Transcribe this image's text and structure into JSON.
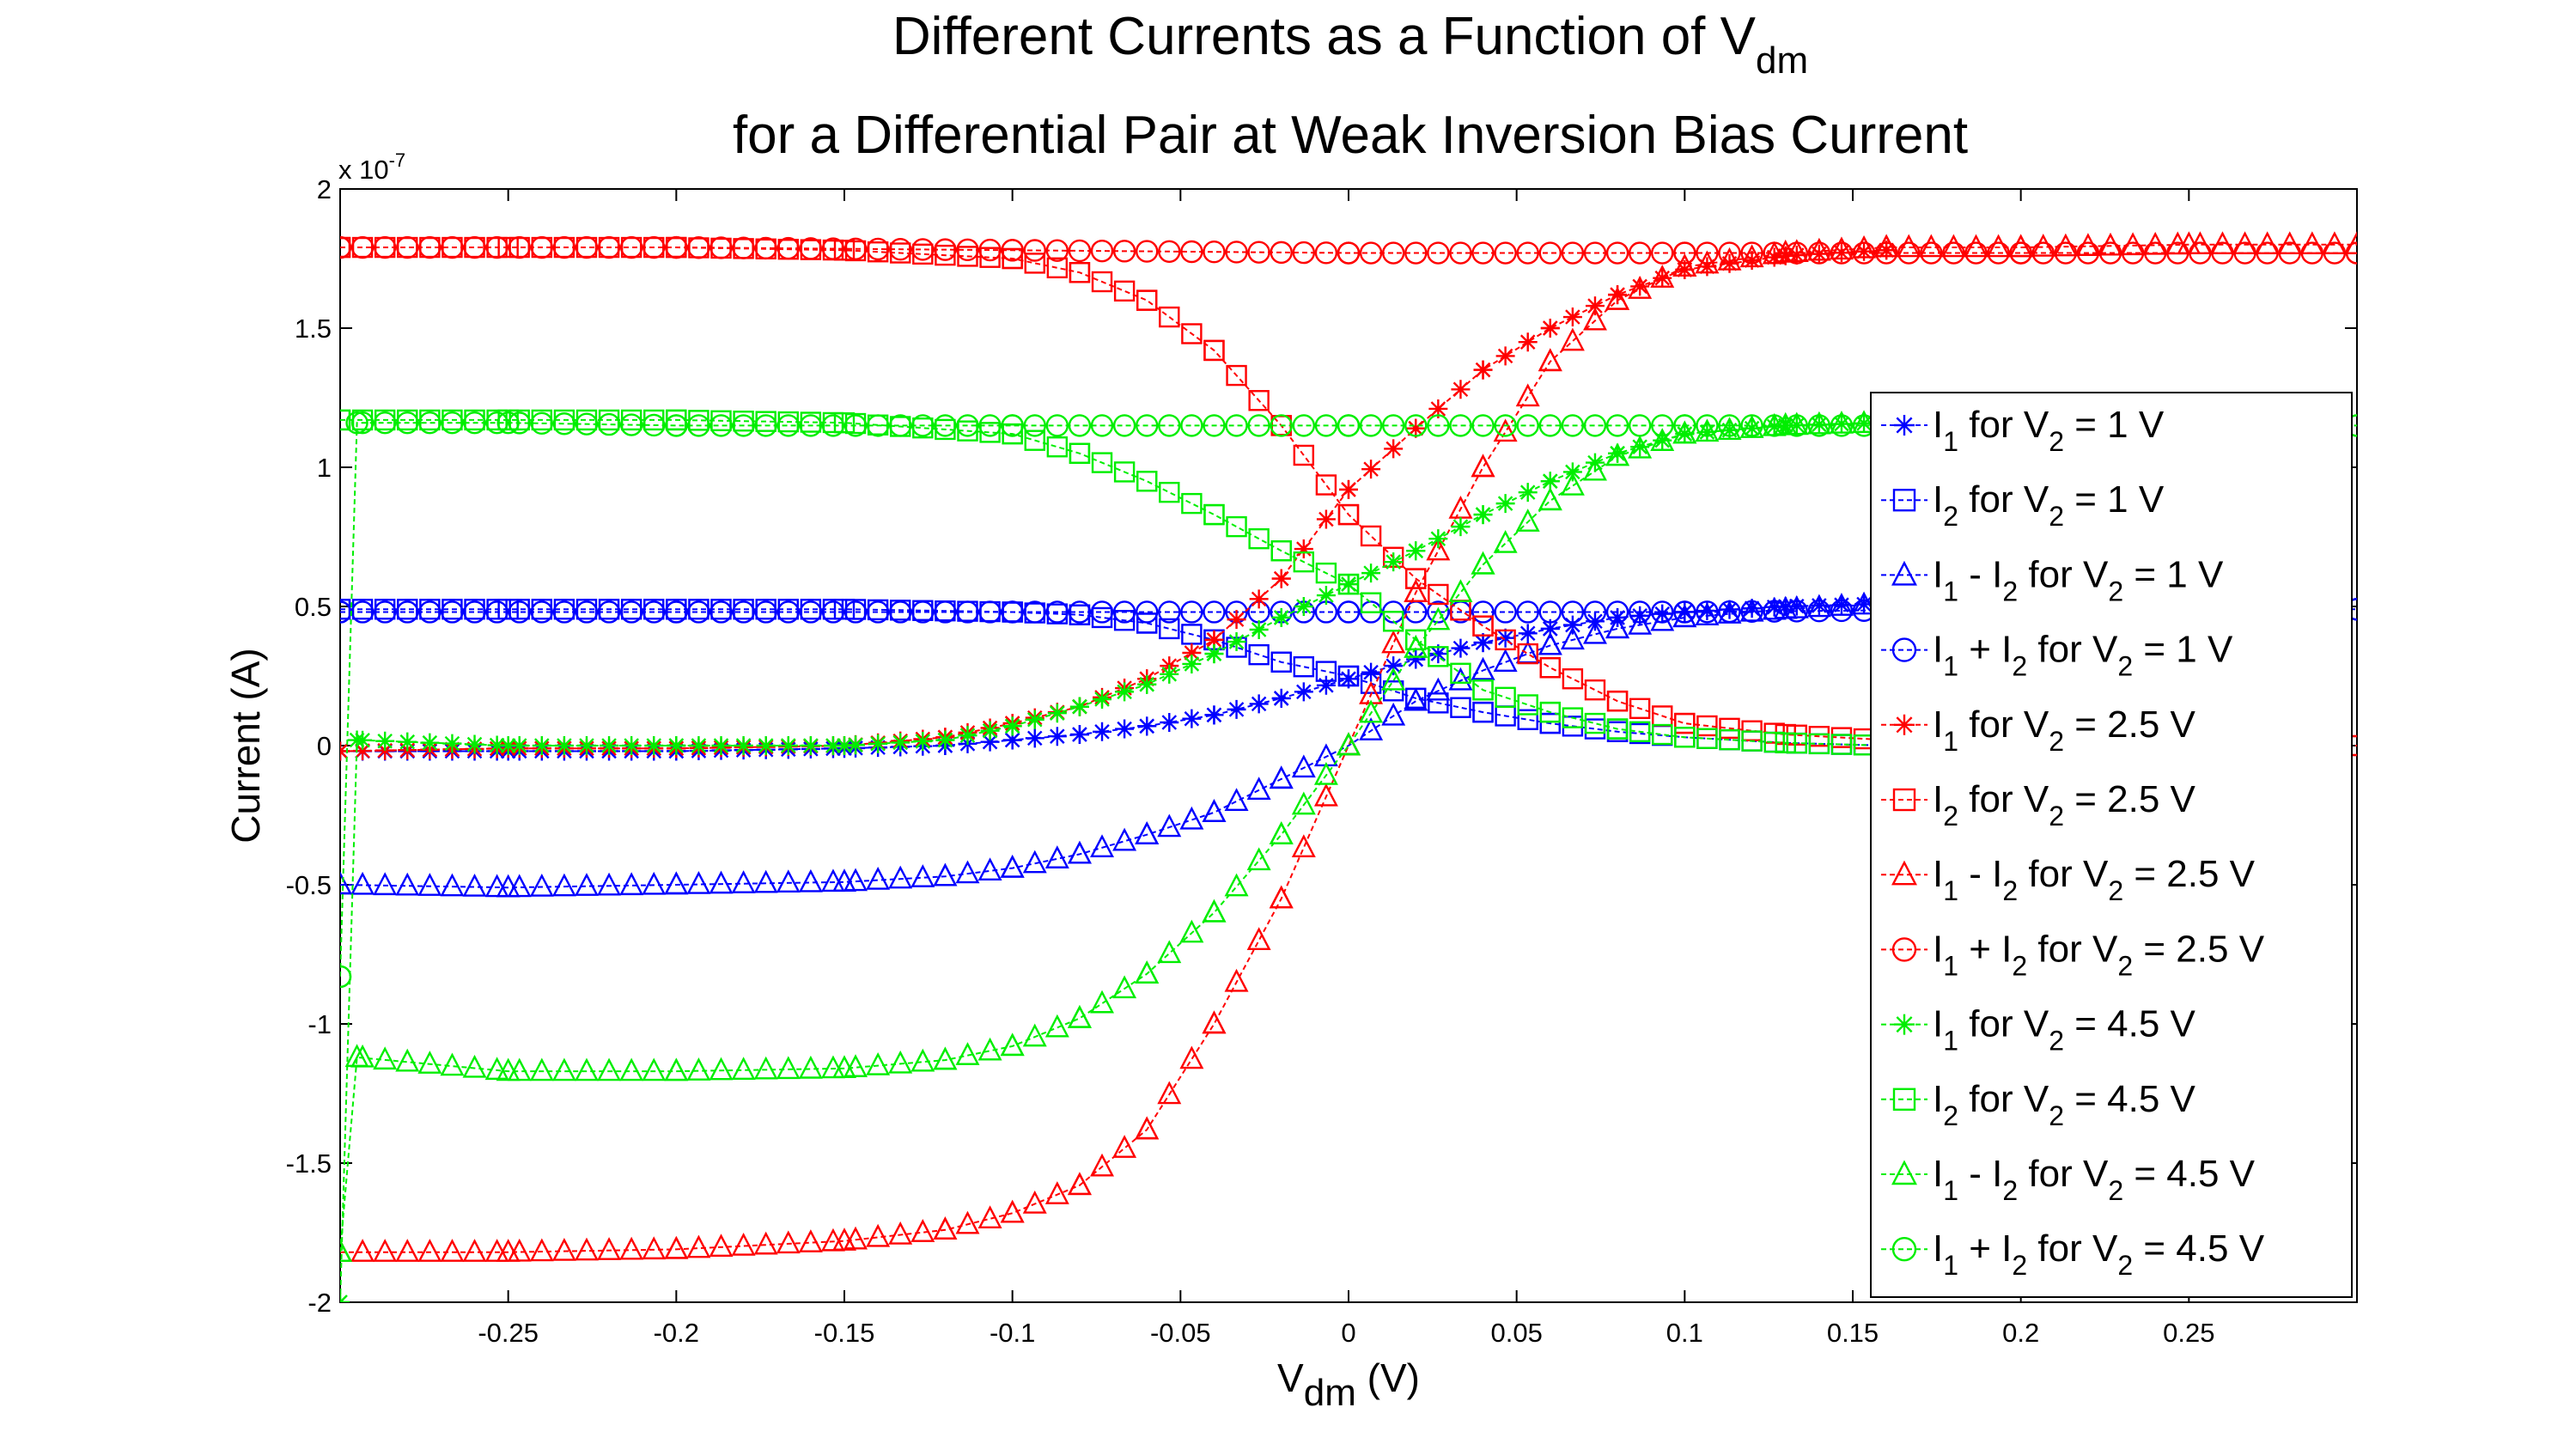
{
  "chart_data": {
    "type": "line",
    "title": {
      "line1_text": "Different Currents as a Function of V",
      "line1_sub": "dm",
      "line2": "for a Differential Pair at Weak Inversion Bias Current"
    },
    "xlabel": {
      "text": "V",
      "sub": "dm",
      "suffix": " (V)"
    },
    "ylabel": "Current (A)",
    "y_multiplier": "x 10",
    "y_multiplier_exp": "-7",
    "xlim": [
      -0.3,
      0.3
    ],
    "ylim": [
      -2,
      2
    ],
    "xticks": [
      -0.25,
      -0.2,
      -0.15,
      -0.1,
      -0.05,
      0,
      0.05,
      0.1,
      0.15,
      0.2,
      0.25
    ],
    "xtick_labels": [
      "-0.25",
      "-0.2",
      "-0.15",
      "-0.1",
      "-0.05",
      "0",
      "0.05",
      "0.1",
      "0.15",
      "0.2",
      "0.25"
    ],
    "yticks": [
      -2,
      -1.5,
      -1,
      -0.5,
      0,
      0.5,
      1,
      1.5,
      2
    ],
    "ytick_labels": [
      "-2",
      "-1.5",
      "-1",
      "-0.5",
      "0",
      "0.5",
      "1",
      "1.5",
      "2"
    ],
    "grid": false,
    "legend_position": "right",
    "series_scale": "x 1e-7 A",
    "series": [
      {
        "name": "I1 for V2 = 1 V",
        "label": {
          "a": "I",
          "as": "1",
          "mid": " for V",
          "ms": "2",
          "end": " = 1 V"
        },
        "color": "#0000ff",
        "marker": "star",
        "x": [
          -0.3,
          -0.25,
          -0.2,
          -0.15,
          -0.12,
          -0.1,
          -0.08,
          -0.06,
          -0.04,
          -0.02,
          0,
          0.02,
          0.04,
          0.06,
          0.08,
          0.1,
          0.13,
          0.16
        ],
        "y": [
          -0.02,
          -0.02,
          -0.02,
          -0.01,
          0.0,
          0.02,
          0.04,
          0.07,
          0.11,
          0.17,
          0.24,
          0.31,
          0.37,
          0.42,
          0.46,
          0.48,
          0.5,
          0.51
        ]
      },
      {
        "name": "I2 for V2 = 1 V",
        "label": {
          "a": "I",
          "as": "2",
          "mid": " for V",
          "ms": "2",
          "end": " = 1 V"
        },
        "color": "#0000ff",
        "marker": "square",
        "x": [
          -0.3,
          -0.25,
          -0.2,
          -0.15,
          -0.1,
          -0.08,
          -0.06,
          -0.04,
          -0.02,
          0,
          0.02,
          0.04,
          0.06,
          0.08,
          0.1,
          0.13,
          0.16
        ],
        "y": [
          0.49,
          0.49,
          0.49,
          0.49,
          0.48,
          0.47,
          0.44,
          0.38,
          0.3,
          0.25,
          0.17,
          0.12,
          0.08,
          0.05,
          0.03,
          0.01,
          0.0
        ]
      },
      {
        "name": "I1 - I2 for V2 = 1 V",
        "label": {
          "a": "I",
          "as": "1",
          "mid": " - I",
          "ms": "2",
          "end": " for V",
          "es": "2",
          "tail": " = 1 V"
        },
        "color": "#0000ff",
        "marker": "triangle",
        "x": [
          -0.3,
          -0.25,
          -0.2,
          -0.15,
          -0.12,
          -0.1,
          -0.08,
          -0.06,
          -0.04,
          -0.02,
          0,
          0.02,
          0.04,
          0.06,
          0.08,
          0.1,
          0.13,
          0.16
        ],
        "y": [
          -0.5,
          -0.51,
          -0.5,
          -0.49,
          -0.47,
          -0.44,
          -0.39,
          -0.32,
          -0.24,
          -0.12,
          0.0,
          0.16,
          0.27,
          0.36,
          0.42,
          0.46,
          0.49,
          0.51
        ]
      },
      {
        "name": "I1 + I2 for V2 = 1 V",
        "label": {
          "a": "I",
          "as": "1",
          "mid": " + I",
          "ms": "2",
          "end": " for V",
          "es": "2",
          "tail": " = 1 V"
        },
        "color": "#0000ff",
        "marker": "circle",
        "x": [
          -0.3,
          -0.2,
          -0.1,
          0,
          0.1,
          0.2,
          0.3
        ],
        "y": [
          0.48,
          0.48,
          0.48,
          0.48,
          0.48,
          0.49,
          0.49
        ]
      },
      {
        "name": "I1 for V2 = 2.5 V",
        "label": {
          "a": "I",
          "as": "1",
          "mid": " for V",
          "ms": "2",
          "end": " = 2.5 V"
        },
        "color": "#ff0000",
        "marker": "star",
        "x": [
          -0.3,
          -0.25,
          -0.2,
          -0.15,
          -0.12,
          -0.1,
          -0.08,
          -0.06,
          -0.04,
          -0.02,
          0,
          0.02,
          0.04,
          0.06,
          0.08,
          0.1,
          0.13,
          0.16
        ],
        "y": [
          -0.02,
          -0.01,
          -0.01,
          0.0,
          0.03,
          0.08,
          0.14,
          0.24,
          0.38,
          0.6,
          0.92,
          1.14,
          1.35,
          1.5,
          1.62,
          1.71,
          1.76,
          1.78
        ]
      },
      {
        "name": "I2 for V2 = 2.5 V",
        "label": {
          "a": "I",
          "as": "2",
          "mid": " for V",
          "ms": "2",
          "end": " = 2.5 V"
        },
        "color": "#ff0000",
        "marker": "square",
        "x": [
          -0.3,
          -0.25,
          -0.2,
          -0.15,
          -0.1,
          -0.08,
          -0.06,
          -0.04,
          -0.02,
          0,
          0.02,
          0.04,
          0.06,
          0.08,
          0.1,
          0.13,
          0.16,
          0.2,
          0.25,
          0.3
        ],
        "y": [
          1.79,
          1.79,
          1.79,
          1.78,
          1.75,
          1.7,
          1.6,
          1.42,
          1.15,
          0.83,
          0.6,
          0.43,
          0.28,
          0.16,
          0.08,
          0.04,
          0.02,
          0.0,
          0.0,
          0.0
        ]
      },
      {
        "name": "I1 - I2 for V2 = 2.5 V",
        "label": {
          "a": "I",
          "as": "1",
          "mid": " - I",
          "ms": "2",
          "end": " for V",
          "es": "2",
          "tail": " = 2.5 V"
        },
        "color": "#ff0000",
        "marker": "triangle",
        "x": [
          -0.3,
          -0.25,
          -0.2,
          -0.15,
          -0.12,
          -0.1,
          -0.08,
          -0.06,
          -0.04,
          -0.02,
          0,
          0.02,
          0.04,
          0.06,
          0.08,
          0.1,
          0.13,
          0.16,
          0.2,
          0.25,
          0.3
        ],
        "y": [
          -1.82,
          -1.82,
          -1.81,
          -1.78,
          -1.74,
          -1.68,
          -1.58,
          -1.38,
          -1.0,
          -0.55,
          0.0,
          0.55,
          1.0,
          1.38,
          1.6,
          1.72,
          1.77,
          1.79,
          1.79,
          1.8,
          1.8
        ]
      },
      {
        "name": "I1 + I2 for V2 = 2.5 V",
        "label": {
          "a": "I",
          "as": "1",
          "mid": " + I",
          "ms": "2",
          "end": " for V",
          "es": "2",
          "tail": " = 2.5 V"
        },
        "color": "#ff0000",
        "marker": "circle",
        "x": [
          -0.3,
          -0.2,
          -0.1,
          0,
          0.1,
          0.2,
          0.3
        ],
        "y": [
          1.79,
          1.79,
          1.78,
          1.77,
          1.77,
          1.77,
          1.77
        ]
      },
      {
        "name": "I1 for V2 = 4.5 V",
        "label": {
          "a": "I",
          "as": "1",
          "mid": " for V",
          "ms": "2",
          "end": " = 4.5 V"
        },
        "color": "#00ee00",
        "marker": "star",
        "x": [
          -0.3,
          -0.295,
          -0.25,
          -0.2,
          -0.15,
          -0.12,
          -0.1,
          -0.08,
          -0.06,
          -0.04,
          -0.02,
          0,
          0.02,
          0.04,
          0.06,
          0.08,
          0.1,
          0.13,
          0.16
        ],
        "y": [
          -2.0,
          0.02,
          0.0,
          0.0,
          0.0,
          0.02,
          0.07,
          0.14,
          0.22,
          0.33,
          0.46,
          0.58,
          0.7,
          0.83,
          0.95,
          1.05,
          1.12,
          1.15,
          1.16
        ]
      },
      {
        "name": "I2 for V2 = 4.5 V",
        "label": {
          "a": "I",
          "as": "2",
          "mid": " for V",
          "ms": "2",
          "end": " = 4.5 V"
        },
        "color": "#00ee00",
        "marker": "square",
        "x": [
          -0.3,
          -0.25,
          -0.2,
          -0.15,
          -0.1,
          -0.08,
          -0.06,
          -0.04,
          -0.02,
          0,
          0.02,
          0.04,
          0.06,
          0.08,
          0.1,
          0.13,
          0.16
        ],
        "y": [
          1.17,
          1.17,
          1.17,
          1.16,
          1.12,
          1.05,
          0.95,
          0.83,
          0.7,
          0.58,
          0.38,
          0.2,
          0.12,
          0.06,
          0.03,
          0.01,
          0.0
        ]
      },
      {
        "name": "I1 - I2 for V2 = 4.5 V",
        "label": {
          "a": "I",
          "as": "1",
          "mid": " - I",
          "ms": "2",
          "end": " for V",
          "es": "2",
          "tail": " = 4.5 V"
        },
        "color": "#00ee00",
        "marker": "triangle",
        "x": [
          -0.3,
          -0.295,
          -0.25,
          -0.2,
          -0.15,
          -0.12,
          -0.1,
          -0.08,
          -0.06,
          -0.04,
          -0.02,
          0,
          0.02,
          0.04,
          0.06,
          0.08,
          0.1,
          0.13,
          0.16
        ],
        "y": [
          -1.82,
          -1.12,
          -1.17,
          -1.17,
          -1.16,
          -1.13,
          -1.08,
          -0.98,
          -0.82,
          -0.6,
          -0.32,
          0.0,
          0.35,
          0.65,
          0.88,
          1.04,
          1.12,
          1.15,
          1.16
        ]
      },
      {
        "name": "I1 + I2 for V2 = 4.5 V",
        "label": {
          "a": "I",
          "as": "1",
          "mid": " + I",
          "ms": "2",
          "end": " for V",
          "es": "2",
          "tail": " = 4.5 V"
        },
        "color": "#00ee00",
        "marker": "circle",
        "x": [
          -0.3,
          -0.295,
          -0.25,
          -0.2,
          -0.1,
          0,
          0.1,
          0.2,
          0.3
        ],
        "y": [
          -0.83,
          1.16,
          1.16,
          1.15,
          1.15,
          1.15,
          1.15,
          1.15,
          1.15
        ]
      }
    ]
  }
}
